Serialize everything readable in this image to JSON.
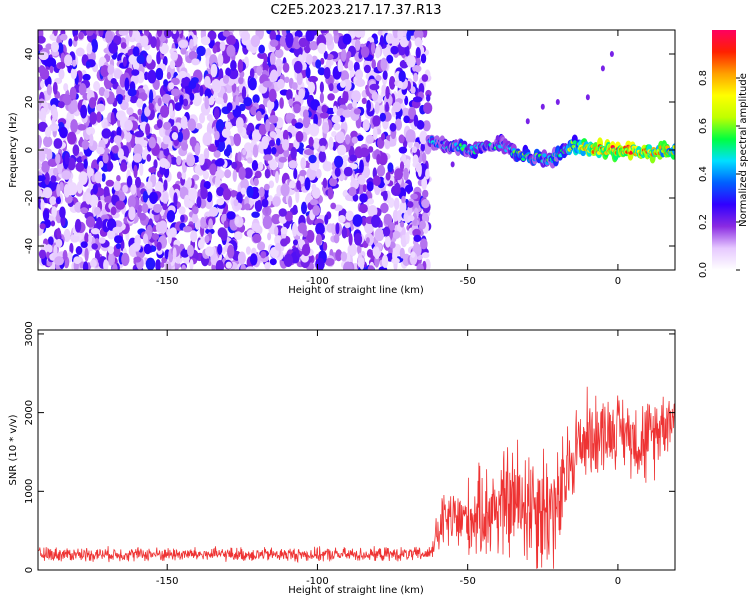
{
  "title": "C2E5.2023.217.17.37.R13",
  "chart_data": [
    {
      "type": "heatmap",
      "xlabel": "Height of straight line (km)",
      "ylabel": "Frequency (Hz)",
      "xlim": [
        -193,
        19
      ],
      "ylim": [
        -50,
        50
      ],
      "xticks": [
        -150,
        -100,
        -50,
        0
      ],
      "yticks": [
        -40,
        -20,
        0,
        20,
        40
      ],
      "noise_region_x": [
        -193,
        -63
      ],
      "signal_track": {
        "x": [
          -63,
          -58,
          -53,
          -48,
          -43,
          -38,
          -33,
          -28,
          -23,
          -18,
          -15,
          -10,
          -5,
          0,
          5,
          10,
          15,
          19
        ],
        "freq": [
          4,
          2,
          1,
          0,
          2,
          2,
          -2,
          -3,
          -4,
          -1,
          2,
          1,
          0,
          0,
          0,
          -1,
          0,
          0
        ],
        "amplitude": [
          0.35,
          0.4,
          0.45,
          0.5,
          0.45,
          0.4,
          0.55,
          0.5,
          0.45,
          0.5,
          0.6,
          0.8,
          0.85,
          0.9,
          0.85,
          0.8,
          0.75,
          0.7
        ]
      },
      "colorbar": {
        "label": "Normalized spectral amplitude",
        "ticks": [
          0.0,
          0.2,
          0.4,
          0.6,
          0.8
        ],
        "range": [
          0,
          1
        ],
        "colors": [
          "#ffffff",
          "#e6c8ff",
          "#8a2be2",
          "#3000ff",
          "#0060ff",
          "#00e0ff",
          "#00ff40",
          "#c0ff00",
          "#ffff00",
          "#ffa000",
          "#ff2000",
          "#ff0060"
        ]
      }
    },
    {
      "type": "line",
      "xlabel": "Height of straight line (km)",
      "ylabel": "SNR (10 * v/v)",
      "xlim": [
        -193,
        19
      ],
      "ylim": [
        0,
        3050
      ],
      "xticks": [
        -150,
        -100,
        -50,
        0
      ],
      "yticks": [
        0,
        1000,
        2000,
        3000
      ],
      "color": "#ee3333",
      "series": [
        {
          "x": [
            -193,
            -150,
            -100,
            -63,
            -58,
            -50,
            -40,
            -35,
            -30,
            -25,
            -20,
            -15,
            -10,
            -5,
            0,
            5,
            10,
            15,
            19
          ],
          "mean": [
            200,
            200,
            195,
            200,
            620,
            650,
            800,
            850,
            900,
            800,
            750,
            1500,
            1700,
            1750,
            1800,
            1700,
            1600,
            1900,
            1950
          ],
          "spread": [
            90,
            90,
            90,
            90,
            400,
            500,
            700,
            800,
            900,
            900,
            800,
            600,
            600,
            500,
            450,
            500,
            600,
            450,
            350
          ]
        }
      ]
    }
  ]
}
